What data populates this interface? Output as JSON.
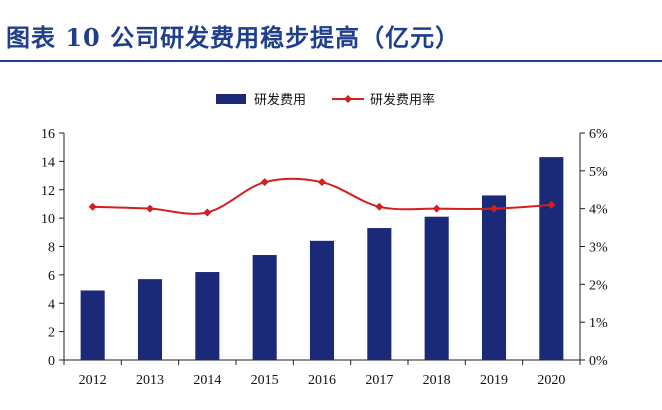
{
  "title": "图表 10   公司研发费用稳步提高（亿元）",
  "colors": {
    "bar": "#1b2a78",
    "line": "#d41f1f",
    "title": "#1f3f8c",
    "axis": "#222222"
  },
  "chart_data": {
    "type": "bar+line",
    "categories": [
      "2012",
      "2013",
      "2014",
      "2015",
      "2016",
      "2017",
      "2018",
      "2019",
      "2020"
    ],
    "series": [
      {
        "name": "研发费用",
        "type": "bar",
        "axis": "left",
        "values": [
          4.9,
          5.7,
          6.2,
          7.4,
          8.4,
          9.3,
          10.1,
          11.6,
          14.3
        ]
      },
      {
        "name": "研发费用率",
        "type": "line",
        "axis": "right",
        "values": [
          0.0405,
          0.04,
          0.039,
          0.047,
          0.047,
          0.0405,
          0.04,
          0.04,
          0.041
        ]
      }
    ],
    "ylim_left": [
      0,
      16
    ],
    "yticks_left": [
      "0",
      "2",
      "4",
      "6",
      "8",
      "10",
      "12",
      "14",
      "16"
    ],
    "ylim_right": [
      0,
      0.06
    ],
    "yticks_right": [
      "0%",
      "1%",
      "2%",
      "3%",
      "4%",
      "5%",
      "6%"
    ],
    "grid": false,
    "legend_position": "top-center"
  }
}
